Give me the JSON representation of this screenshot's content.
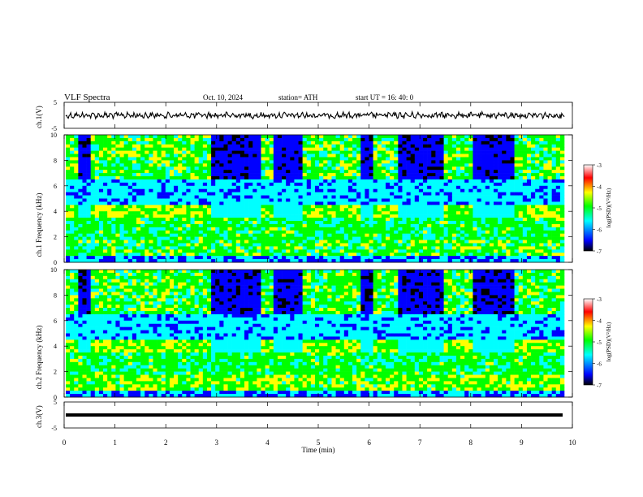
{
  "header": {
    "title": "VLF  Spectra",
    "date": "Oct. 10, 2024",
    "station": "station= ATH",
    "start": "start  UT  =   16: 40: 0"
  },
  "chart_data": [
    {
      "type": "line",
      "panel": "ch1-waveform",
      "ylabel": "ch.1(V)",
      "yticks": [
        "5",
        "-5"
      ],
      "ylim": [
        -5,
        5
      ]
    },
    {
      "type": "heatmap",
      "panel": "ch1-spectrogram",
      "ylabel": "ch.1  Frequency (kHz)",
      "ylim": [
        0,
        10
      ],
      "yticks": [
        "0",
        "2",
        "4",
        "6",
        "8",
        "10"
      ],
      "colorbar": {
        "label": "log(PSD)(V²/Hz)",
        "ticks": [
          "-3",
          "-4",
          "-5",
          "-6",
          "-7"
        ],
        "range": [
          -7,
          -3
        ]
      }
    },
    {
      "type": "heatmap",
      "panel": "ch2-spectrogram",
      "ylabel": "ch.2  Frequency (kHz)",
      "ylim": [
        0,
        10
      ],
      "yticks": [
        "0",
        "2",
        "4",
        "6",
        "8",
        "10"
      ],
      "colorbar": {
        "label": "log(PSD)(V²/Hz)",
        "ticks": [
          "-3",
          "-4",
          "-5",
          "-6",
          "-7"
        ],
        "range": [
          -7,
          -3
        ]
      }
    },
    {
      "type": "line",
      "panel": "ch3-waveform",
      "ylabel": "ch.3(V)",
      "yticks": [
        "5",
        "-5"
      ],
      "ylim": [
        -5,
        5
      ]
    }
  ],
  "xaxis": {
    "label": "Time  (min)",
    "ticks": [
      "0",
      "1",
      "2",
      "3",
      "4",
      "5",
      "6",
      "7",
      "8",
      "9",
      "10"
    ],
    "xlim": [
      0,
      10
    ]
  },
  "colors": {
    "colormap": [
      "#000000",
      "#0000ff",
      "#00ffff",
      "#00ff00",
      "#ffff00",
      "#ff0000",
      "#ffffff"
    ]
  }
}
